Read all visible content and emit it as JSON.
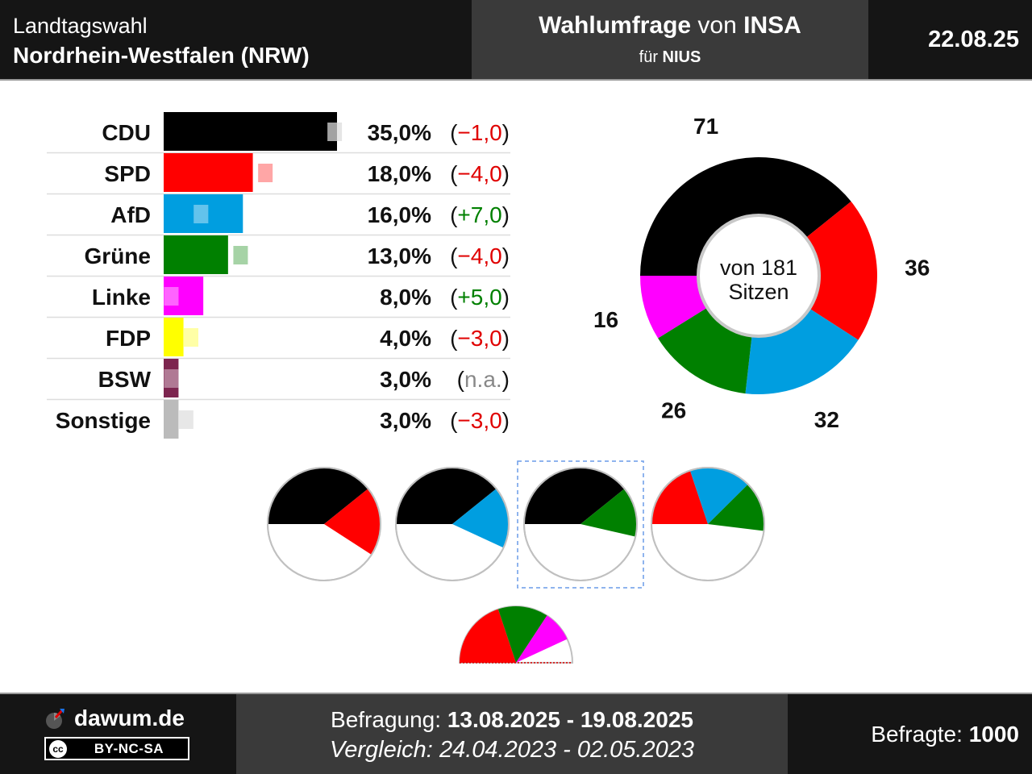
{
  "header": {
    "election_type": "Landtagswahl",
    "state": "Nordrhein-Westfalen (NRW)",
    "poll_word": "Wahlumfrage",
    "von": "von",
    "institute": "INSA",
    "fuer": "für",
    "client": "NIUS",
    "date": "22.08.25"
  },
  "footer": {
    "site": "dawum.de",
    "license": "BY-NC-SA",
    "cc": "cc",
    "survey_label": "Befragung:",
    "survey_period": "13.08.2025 - 19.08.2025",
    "comparison_label": "Vergleich:",
    "comparison_period": "24.04.2023 - 02.05.2023",
    "respondents_label": "Befragte:",
    "respondents": "1000"
  },
  "colors": {
    "header_bg": "#151515",
    "header_mid_bg": "#3a3a3a",
    "positive": "#008000",
    "negative": "#e00000",
    "neutral": "#888888"
  },
  "chart_data": [
    {
      "type": "bar",
      "orientation": "horizontal",
      "categories": [
        "CDU",
        "SPD",
        "AfD",
        "Grüne",
        "Linke",
        "FDP",
        "BSW",
        "Sonstige"
      ],
      "values": [
        35.0,
        18.0,
        16.0,
        13.0,
        8.0,
        4.0,
        3.0,
        3.0
      ],
      "previous": [
        36.0,
        22.0,
        9.0,
        17.0,
        3.0,
        7.0,
        null,
        6.0
      ],
      "value_labels": [
        "35,0%",
        "18,0%",
        "16,0%",
        "13,0%",
        "8,0%",
        "4,0%",
        "3,0%",
        "3,0%"
      ],
      "change_labels": [
        "(−1,0)",
        "(−4,0)",
        "(+7,0)",
        "(−4,0)",
        "(+5,0)",
        "(−3,0)",
        "(n.a.)",
        "(−3,0)"
      ],
      "change_sign": [
        "neg",
        "neg",
        "pos",
        "neg",
        "pos",
        "neg",
        "na",
        "neg"
      ],
      "colors": [
        "#000000",
        "#ff0000",
        "#009ee0",
        "#008000",
        "#ff00ff",
        "#ffff00",
        "#7d254f",
        "#bbbbbb"
      ],
      "xlim": [
        0,
        35
      ]
    },
    {
      "type": "pie",
      "variant": "donut",
      "labels": [
        "CDU",
        "SPD",
        "AfD",
        "Grüne",
        "Linke"
      ],
      "values": [
        71,
        36,
        32,
        26,
        16
      ],
      "colors": [
        "#000000",
        "#ff0000",
        "#009ee0",
        "#008000",
        "#ff00ff"
      ],
      "center_line1": "von 181",
      "center_line2": "Sitzen"
    },
    {
      "type": "pie",
      "variant": "coalitions",
      "coalitions": [
        {
          "parties": [
            "CDU",
            "SPD"
          ],
          "seats": [
            71,
            36
          ],
          "colors": [
            "#000000",
            "#ff0000"
          ],
          "highlighted": false
        },
        {
          "parties": [
            "CDU",
            "AfD"
          ],
          "seats": [
            71,
            32
          ],
          "colors": [
            "#000000",
            "#009ee0"
          ],
          "highlighted": false
        },
        {
          "parties": [
            "CDU",
            "Grüne"
          ],
          "seats": [
            71,
            26
          ],
          "colors": [
            "#000000",
            "#008000"
          ],
          "highlighted": true
        },
        {
          "parties": [
            "SPD",
            "AfD",
            "Grüne"
          ],
          "seats": [
            36,
            32,
            26
          ],
          "colors": [
            "#ff0000",
            "#009ee0",
            "#008000"
          ],
          "highlighted": false
        }
      ],
      "total": 181
    },
    {
      "type": "pie",
      "variant": "semicircle",
      "parties": [
        "SPD",
        "Grüne",
        "Linke"
      ],
      "seats": [
        36,
        26,
        16
      ],
      "colors": [
        "#ff0000",
        "#008000",
        "#ff00ff"
      ],
      "total": 181
    }
  ]
}
